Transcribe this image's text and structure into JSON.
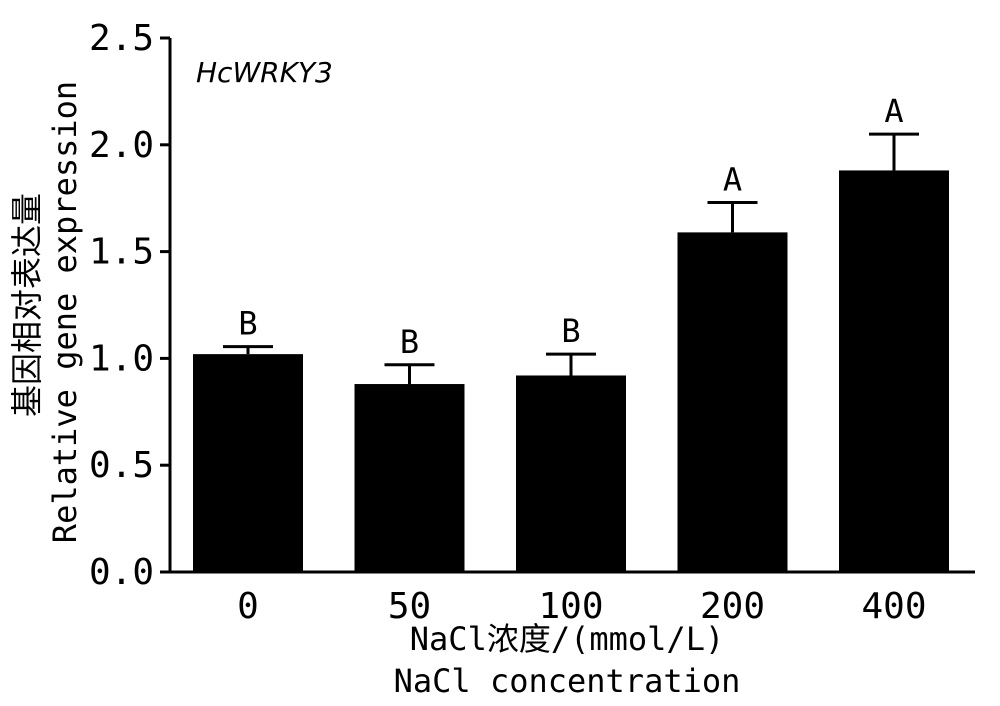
{
  "chart_data": {
    "type": "bar",
    "annotation": "HcWRKY3",
    "categories": [
      "0",
      "50",
      "100",
      "200",
      "400"
    ],
    "series": [
      {
        "values": [
          1.02,
          0.88,
          0.92,
          1.59,
          1.88
        ],
        "errors": [
          0.035,
          0.09,
          0.1,
          0.14,
          0.17
        ],
        "significance": [
          "B",
          "B",
          "B",
          "A",
          "A"
        ]
      }
    ],
    "xlabel_cn": "NaCl浓度/(mmol/L)",
    "xlabel_en": "NaCl concentration",
    "ylabel_cn": "基因相对表达量",
    "ylabel_en": "Relative gene expression",
    "ylim": [
      0,
      2.5
    ],
    "yticks": [
      "0.0",
      "0.5",
      "1.0",
      "1.5",
      "2.0",
      "2.5"
    ],
    "grid": false,
    "bar_color": "#000000"
  }
}
